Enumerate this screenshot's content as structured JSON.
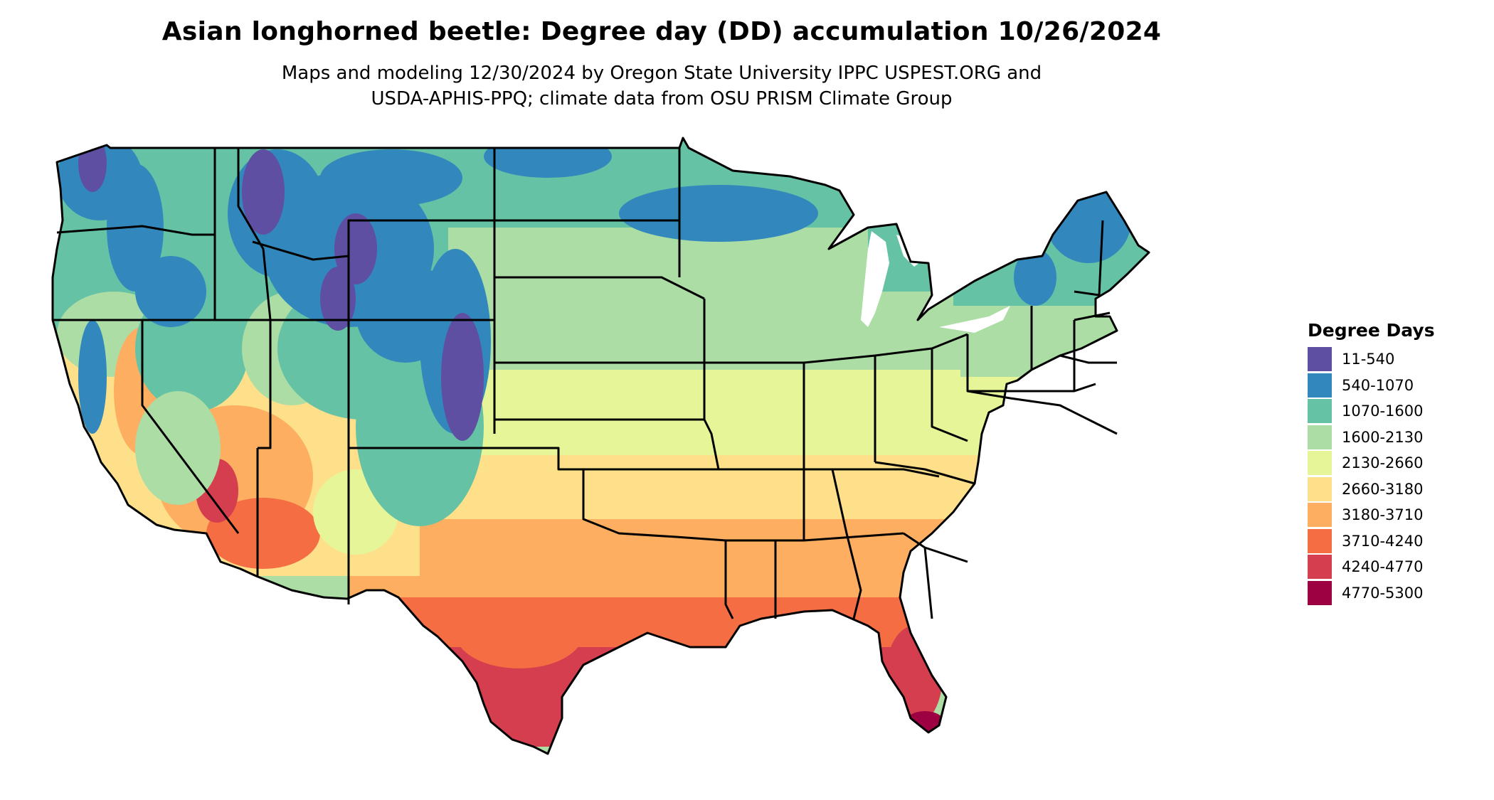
{
  "title": "Asian longhorned beetle: Degree day (DD) accumulation 10/26/2024",
  "subtitle": {
    "line1": "Maps and modeling 12/30/2024 by Oregon State University IPPC USPEST.ORG and",
    "line2": "USDA-APHIS-PPQ; climate data from OSU PRISM Climate Group"
  },
  "legend": {
    "title": "Degree Days",
    "items": [
      {
        "label": "11-540",
        "color": "#5e4fa2"
      },
      {
        "label": "540-1070",
        "color": "#3288bd"
      },
      {
        "label": "1070-1600",
        "color": "#66c2a5"
      },
      {
        "label": "1600-2130",
        "color": "#abdda4"
      },
      {
        "label": "2130-2660",
        "color": "#e6f598"
      },
      {
        "label": "2660-3180",
        "color": "#fee08b"
      },
      {
        "label": "3180-3710",
        "color": "#fdae61"
      },
      {
        "label": "3710-4240",
        "color": "#f46d43"
      },
      {
        "label": "4240-4770",
        "color": "#d53e4f"
      },
      {
        "label": "4770-5300",
        "color": "#9e0142"
      }
    ]
  }
}
